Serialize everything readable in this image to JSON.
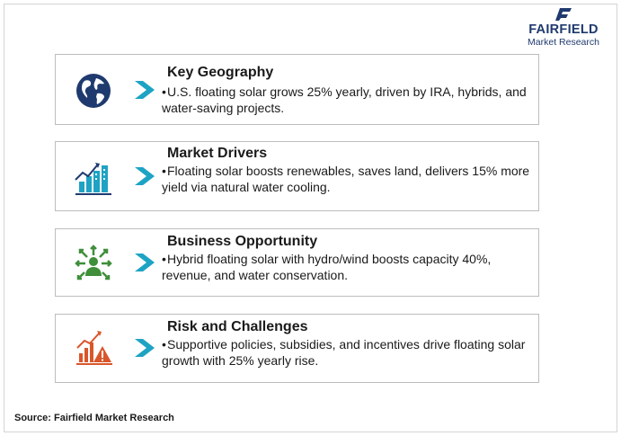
{
  "brand": {
    "name": "FAIRFIELD",
    "subtitle": "Market Research",
    "color": "#1f3a6e"
  },
  "accent_color": "#1ea3c4",
  "cards": [
    {
      "icon": "globe-icon",
      "icon_color": "#1f3a6e",
      "title": "Key Geography",
      "text": "U.S. floating solar grows 25% yearly, driven by IRA, hybrids, and water-saving projects."
    },
    {
      "icon": "growth-city-icon",
      "icon_color": "#1ea3c4",
      "title": "Market Drivers",
      "text": "Floating solar boosts renewables, saves land, delivers 15% more yield via natural water cooling."
    },
    {
      "icon": "opportunity-icon",
      "icon_color": "#3f8f3a",
      "title": "Business Opportunity",
      "text": "Hybrid floating solar with hydro/wind boosts capacity 40%, revenue, and water conservation."
    },
    {
      "icon": "risk-chart-icon",
      "icon_color": "#d9562b",
      "title": "Risk and Challenges",
      "text": "Supportive policies, subsidies, and incentives drive floating solar growth with 25% yearly rise."
    }
  ],
  "source": "Source: Fairfield Market Research"
}
